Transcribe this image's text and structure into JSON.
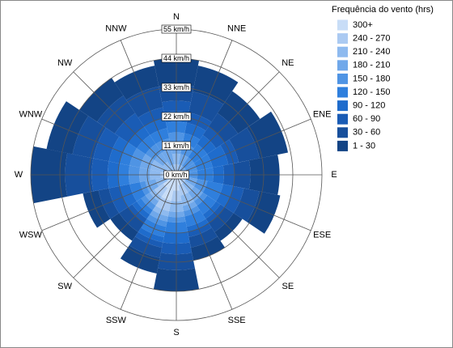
{
  "chart_data": {
    "type": "windrose",
    "directions": [
      "N",
      "NNE",
      "NE",
      "ENE",
      "E",
      "ESE",
      "SE",
      "SSE",
      "S",
      "SSW",
      "SW",
      "WSW",
      "W",
      "WNW",
      "NW",
      "NNW"
    ],
    "rlim": [
      0,
      55
    ],
    "rticks": [
      {
        "value": 0,
        "label": "0 km/h"
      },
      {
        "value": 11,
        "label": "11 km/h"
      },
      {
        "value": 22,
        "label": "22 km/h"
      },
      {
        "value": 33,
        "label": "33 km/h"
      },
      {
        "value": 44,
        "label": "44 km/h"
      },
      {
        "value": 55,
        "label": "55 km/h"
      }
    ],
    "legend_title": "Frequência do vento (hrs)",
    "series": [
      {
        "name": "300+",
        "color": "#c8ddf7",
        "values": [
          0,
          0,
          0,
          0,
          0,
          0,
          0,
          4,
          6,
          10,
          6,
          0,
          0,
          0,
          0,
          0
        ]
      },
      {
        "name": "240 - 270",
        "color": "#abcaf2",
        "values": [
          4,
          0,
          0,
          0,
          0,
          0,
          4,
          4,
          4,
          4,
          4,
          4,
          6,
          4,
          0,
          0
        ]
      },
      {
        "name": "210 - 240",
        "color": "#8ebaef",
        "values": [
          4,
          4,
          0,
          0,
          0,
          4,
          4,
          4,
          4,
          2,
          2,
          4,
          4,
          6,
          6,
          4
        ]
      },
      {
        "name": "180 - 210",
        "color": "#70a8ea",
        "values": [
          4,
          4,
          4,
          4,
          4,
          4,
          4,
          2,
          2,
          2,
          2,
          4,
          4,
          4,
          4,
          6
        ]
      },
      {
        "name": "150 - 180",
        "color": "#4f94e4",
        "values": [
          4,
          4,
          4,
          4,
          4,
          4,
          2,
          2,
          2,
          2,
          2,
          2,
          4,
          4,
          4,
          4
        ]
      },
      {
        "name": "120 - 150",
        "color": "#2f7fdd",
        "values": [
          4,
          4,
          6,
          6,
          6,
          6,
          4,
          4,
          4,
          4,
          2,
          4,
          4,
          4,
          4,
          4
        ]
      },
      {
        "name": "90 - 120",
        "color": "#1f6ccc",
        "values": [
          4,
          4,
          4,
          6,
          4,
          4,
          2,
          2,
          4,
          2,
          2,
          4,
          4,
          4,
          4,
          4
        ]
      },
      {
        "name": "60 - 90",
        "color": "#1a5cb5",
        "values": [
          4,
          4,
          4,
          4,
          4,
          4,
          2,
          2,
          4,
          2,
          2,
          4,
          6,
          6,
          6,
          4
        ]
      },
      {
        "name": "30 - 60",
        "color": "#174f9c",
        "values": [
          6,
          8,
          6,
          8,
          6,
          6,
          4,
          4,
          6,
          4,
          4,
          4,
          10,
          8,
          8,
          8
        ]
      },
      {
        "name": "1 - 30",
        "color": "#134485",
        "values": [
          10,
          10,
          10,
          11,
          11,
          8,
          4,
          5,
          8,
          6,
          4,
          6,
          13,
          10,
          8,
          8
        ]
      }
    ]
  }
}
